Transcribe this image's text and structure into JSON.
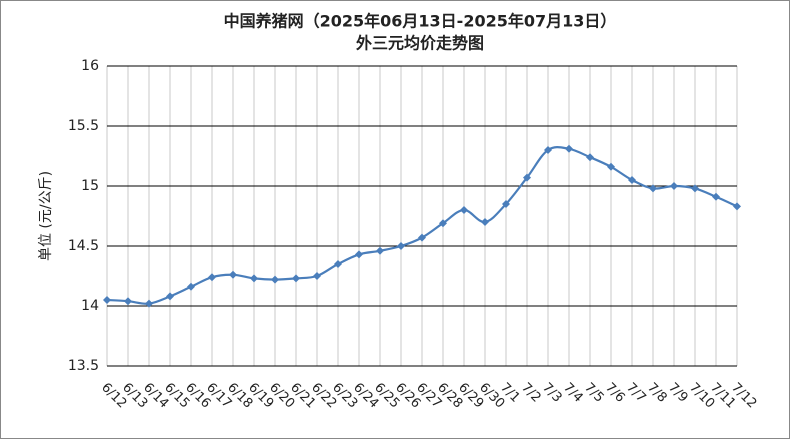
{
  "chart_data": {
    "type": "line",
    "title": "中国养猪网（2025年06月13日-2025年07月13日）",
    "subtitle": "外三元均价走势图",
    "y_label": "单位 (元/公斤)",
    "categories": [
      "6/12",
      "6/13",
      "6/14",
      "6/15",
      "6/16",
      "6/17",
      "6/18",
      "6/19",
      "6/20",
      "6/21",
      "6/22",
      "6/23",
      "6/24",
      "6/25",
      "6/26",
      "6/27",
      "6/28",
      "6/29",
      "6/30",
      "7/1",
      "7/2",
      "7/3",
      "7/4",
      "7/5",
      "7/6",
      "7/7",
      "7/8",
      "7/9",
      "7/10",
      "7/11",
      "7/12"
    ],
    "series": [
      {
        "color": "#4a7ebb",
        "values": [
          14.05,
          14.04,
          14.02,
          14.08,
          14.16,
          14.24,
          14.26,
          14.23,
          14.22,
          14.23,
          14.25,
          14.35,
          14.43,
          14.46,
          14.5,
          14.57,
          14.69,
          14.8,
          14.7,
          14.85,
          15.07,
          15.3,
          15.31,
          15.24,
          15.16,
          15.05,
          14.98,
          15.0,
          14.98,
          14.91,
          14.83
        ]
      }
    ],
    "ylim": [
      13.5,
      16
    ],
    "yticks": [
      13.5,
      14,
      14.5,
      15,
      15.5,
      16
    ],
    "grid": true
  }
}
